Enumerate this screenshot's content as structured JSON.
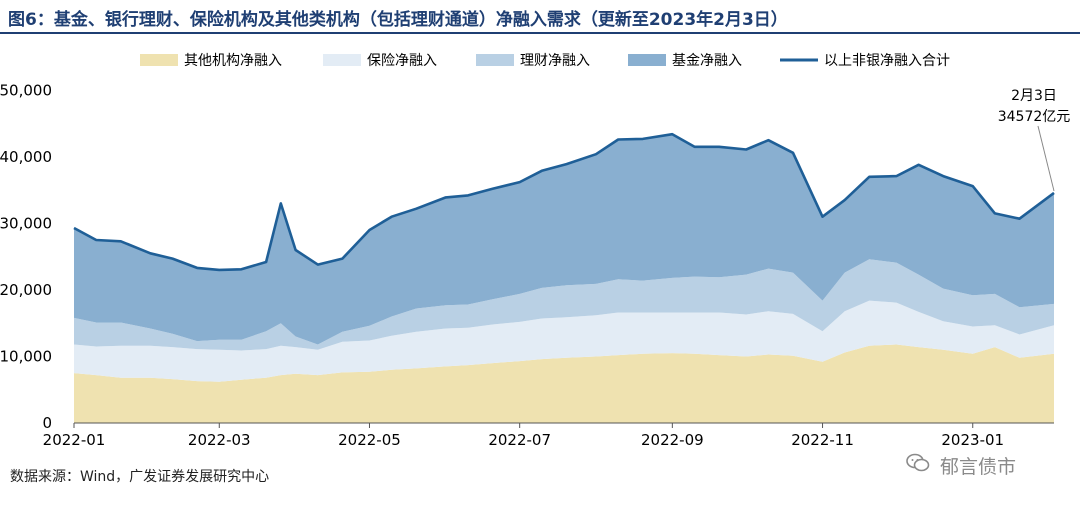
{
  "header": {
    "title": "图6：基金、银行理财、保险机构及其他类机构（包括理财通道）净融入需求（更新至2023年2月3日）"
  },
  "footer": {
    "source": "数据来源：Wind，广发证券发展研究中心",
    "watermark": "郁言债市",
    "watermark_icon": "wechat-icon"
  },
  "colors": {
    "other": "#efe2b0",
    "insurance": "#e3ecf5",
    "wealth": "#b9d0e4",
    "fund": "#89afd0",
    "total": "#1f5f97",
    "title": "#1f3f73"
  },
  "chart_data": {
    "type": "area",
    "stacked": true,
    "x_ticks": [
      "2022-01",
      "2022-03",
      "2022-05",
      "2022-07",
      "2022-09",
      "2022-11",
      "2023-01"
    ],
    "ylim": [
      0,
      55000
    ],
    "y_ticks": [
      0,
      10000,
      20000,
      30000,
      40000,
      50000
    ],
    "y_tick_labels": [
      "0",
      "10,000",
      "20,000",
      "30,000",
      "40,000",
      "50,000"
    ],
    "legend_position": "top",
    "x": [
      "2022-01-01",
      "2022-01-10",
      "2022-01-20",
      "2022-02-01",
      "2022-02-10",
      "2022-02-20",
      "2022-03-01",
      "2022-03-10",
      "2022-03-20",
      "2022-03-26",
      "2022-04-01",
      "2022-04-10",
      "2022-04-20",
      "2022-05-01",
      "2022-05-10",
      "2022-05-20",
      "2022-06-01",
      "2022-06-10",
      "2022-06-20",
      "2022-07-01",
      "2022-07-10",
      "2022-07-20",
      "2022-08-01",
      "2022-08-10",
      "2022-08-20",
      "2022-09-01",
      "2022-09-10",
      "2022-09-20",
      "2022-10-01",
      "2022-10-10",
      "2022-10-20",
      "2022-11-01",
      "2022-11-10",
      "2022-11-20",
      "2022-12-01",
      "2022-12-10",
      "2022-12-20",
      "2023-01-01",
      "2023-01-10",
      "2023-01-20",
      "2023-02-03"
    ],
    "series": [
      {
        "name": "其他机构净融入",
        "type": "area",
        "values": [
          7500,
          7200,
          6800,
          6800,
          6600,
          6300,
          6200,
          6500,
          6800,
          7200,
          7400,
          7200,
          7600,
          7700,
          8000,
          8200,
          8500,
          8700,
          9000,
          9300,
          9600,
          9800,
          10000,
          10200,
          10400,
          10500,
          10400,
          10200,
          10000,
          10300,
          10100,
          9200,
          10600,
          11600,
          11800,
          11400,
          11000,
          10400,
          11400,
          9800,
          10400
        ]
      },
      {
        "name": "保险净融入",
        "type": "area",
        "values": [
          4300,
          4300,
          4800,
          4800,
          4800,
          4800,
          4800,
          4400,
          4300,
          4400,
          4000,
          3800,
          4600,
          4700,
          5100,
          5500,
          5700,
          5600,
          5800,
          5900,
          6100,
          6100,
          6200,
          6400,
          6200,
          6100,
          6200,
          6400,
          6300,
          6500,
          6300,
          4600,
          6200,
          6800,
          6300,
          5300,
          4300,
          4100,
          3300,
          3500,
          4300
        ]
      },
      {
        "name": "理财净融入",
        "type": "area",
        "values": [
          4000,
          3600,
          3500,
          2600,
          2000,
          1200,
          1500,
          1600,
          2700,
          3400,
          1600,
          800,
          1500,
          2200,
          2900,
          3500,
          3500,
          3500,
          3800,
          4200,
          4600,
          4800,
          4700,
          5000,
          4800,
          5200,
          5400,
          5300,
          6000,
          6400,
          6200,
          4600,
          5800,
          6200,
          6000,
          5600,
          4900,
          4700,
          4700,
          4100,
          3200
        ]
      },
      {
        "name": "基金净融入",
        "type": "area",
        "values": [
          13500,
          12400,
          12200,
          11300,
          11300,
          11000,
          10500,
          10600,
          10400,
          18000,
          13000,
          12000,
          11000,
          14400,
          15000,
          15000,
          16200,
          16400,
          16600,
          16800,
          17600,
          18200,
          19500,
          21000,
          21300,
          21600,
          19500,
          19600,
          18800,
          19300,
          18000,
          12600,
          10900,
          12400,
          13000,
          16500,
          16900,
          16400,
          12100,
          13300,
          16672
        ]
      },
      {
        "name": "以上非银净融入合计",
        "type": "line",
        "values": [
          29300,
          27500,
          27300,
          25500,
          24700,
          23300,
          23000,
          23100,
          24200,
          33000,
          26000,
          23800,
          24700,
          29000,
          31000,
          32200,
          33900,
          34200,
          35200,
          36200,
          37900,
          38900,
          40400,
          42600,
          42700,
          43400,
          41500,
          41500,
          41100,
          42500,
          40600,
          31000,
          33500,
          37000,
          37100,
          38800,
          37100,
          35600,
          31500,
          30700,
          34572
        ]
      }
    ],
    "annotation": {
      "date_label": "2月3日",
      "value_label": "34572亿元",
      "x": "2023-02-03",
      "y": 34572
    }
  }
}
